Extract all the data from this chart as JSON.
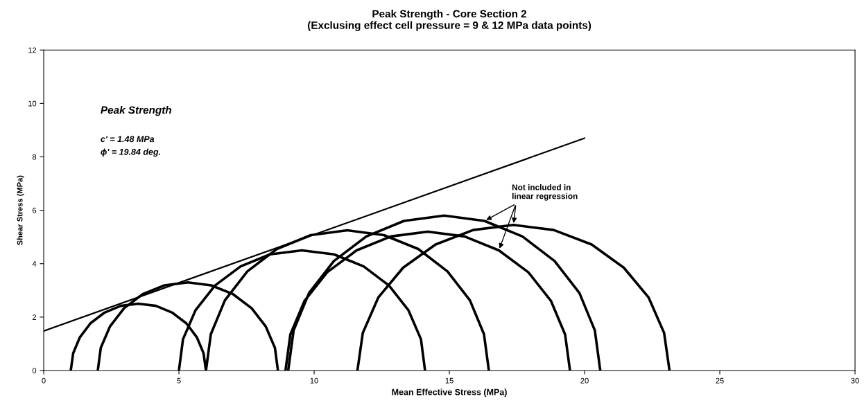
{
  "chart_data": {
    "type": "line",
    "title": "Peak Strength - Core Section 2\n(Exclusing effect cell pressure = 9 & 12 MPa data points)",
    "xlabel": "Mean Effective Stress (MPa)",
    "ylabel": "Shear Stress (MPa)",
    "xlim": [
      0,
      30
    ],
    "xticks": [
      0,
      5,
      10,
      15,
      20,
      25,
      30
    ],
    "ylim": [
      0,
      12
    ],
    "yticks": [
      0,
      2,
      4,
      6,
      8,
      10,
      12
    ],
    "grid": false,
    "legend": false,
    "marker": "none",
    "line_style": "solid",
    "series": [
      {
        "color": "#000000",
        "x": [
          0,
          20
        ],
        "values": [
          1.48,
          8.7
        ]
      },
      {
        "color": "#000000",
        "x": [
          1.0,
          1.09,
          1.34,
          1.73,
          2.25,
          2.85,
          3.5,
          4.15,
          4.75,
          5.27,
          5.66,
          5.91,
          6.0
        ],
        "values": [
          0,
          0.65,
          1.25,
          1.77,
          2.17,
          2.42,
          2.5,
          2.42,
          2.17,
          1.77,
          1.25,
          0.65,
          0
        ]
      },
      {
        "color": "#000000",
        "x": [
          2.0,
          2.11,
          2.45,
          2.97,
          3.66,
          4.47,
          5.33,
          6.19,
          7.0,
          7.69,
          8.21,
          8.55,
          8.66
        ],
        "values": [
          0,
          0.85,
          1.65,
          2.33,
          2.86,
          3.19,
          3.3,
          3.19,
          2.86,
          2.33,
          1.65,
          0.85,
          0
        ]
      },
      {
        "color": "#000000",
        "x": [
          5.0,
          5.15,
          5.61,
          6.33,
          7.28,
          8.37,
          9.55,
          10.73,
          11.83,
          12.77,
          13.49,
          13.95,
          14.1
        ],
        "values": [
          0,
          1.17,
          2.25,
          3.18,
          3.9,
          4.35,
          4.5,
          4.35,
          3.9,
          3.18,
          2.25,
          1.17,
          0
        ]
      },
      {
        "color": "#000000",
        "x": [
          6.0,
          6.18,
          6.7,
          7.53,
          8.62,
          9.88,
          11.23,
          12.58,
          13.85,
          14.93,
          15.76,
          16.28,
          16.46
        ],
        "values": [
          0,
          1.36,
          2.63,
          3.71,
          4.55,
          5.07,
          5.25,
          5.07,
          4.55,
          3.71,
          2.63,
          1.36,
          0
        ]
      },
      {
        "color": "#000000",
        "x": [
          8.94,
          9.12,
          9.64,
          10.48,
          11.57,
          12.84,
          14.2,
          15.56,
          16.83,
          17.92,
          18.76,
          19.28,
          19.46
        ],
        "values": [
          0,
          1.35,
          2.6,
          3.68,
          4.5,
          5.02,
          5.2,
          5.02,
          4.5,
          3.68,
          2.6,
          1.35,
          0
        ]
      },
      {
        "color": "#000000",
        "x": [
          9.04,
          9.24,
          9.81,
          10.73,
          11.93,
          13.32,
          14.81,
          16.3,
          17.7,
          18.89,
          19.81,
          20.38,
          20.58
        ],
        "values": [
          0,
          1.5,
          2.9,
          4.1,
          5.02,
          5.6,
          5.8,
          5.6,
          5.02,
          4.1,
          2.9,
          1.5,
          0
        ]
      },
      {
        "color": "#000000",
        "x": [
          11.6,
          11.8,
          12.37,
          13.29,
          14.49,
          15.88,
          17.37,
          18.86,
          20.26,
          21.45,
          22.37,
          22.94,
          23.14
        ],
        "values": [
          0,
          1.41,
          2.73,
          3.85,
          4.72,
          5.26,
          5.45,
          5.26,
          4.72,
          3.85,
          2.73,
          1.41,
          0
        ]
      }
    ],
    "annotations": [
      "Peak Strength",
      "c' = 1.48 MPa",
      "ϕ' = 19.84 deg.",
      {
        "text": "Not included in\nlinear regression",
        "x": 16.3,
        "y": 5.6
      }
    ]
  }
}
